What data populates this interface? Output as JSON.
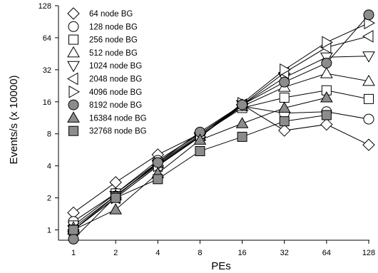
{
  "chart_data": {
    "type": "line",
    "xlabel": "PEs",
    "ylabel": "Events/s (x 10000)",
    "x": [
      1,
      2,
      4,
      8,
      16,
      32,
      64,
      128
    ],
    "x_tick_labels": [
      "1",
      "2",
      "4",
      "8",
      "16",
      "32",
      "64",
      "128"
    ],
    "y_ticks": [
      1,
      2,
      4,
      8,
      16,
      32,
      64,
      128
    ],
    "y_tick_labels": [
      "1",
      "2",
      "4",
      "8",
      "16",
      "32",
      "64",
      "128"
    ],
    "x_scale": "log2",
    "y_scale": "log2",
    "xlim": [
      1,
      128
    ],
    "ylim": [
      0.8,
      128
    ],
    "grid": false,
    "legend_position": "top-left",
    "series": [
      {
        "name": "64 node BG",
        "marker": "diamond",
        "fill": "none",
        "values": [
          1.45,
          2.8,
          5.1,
          8.0,
          15.0,
          8.6,
          9.8,
          6.3
        ]
      },
      {
        "name": "128 node BG",
        "marker": "circle",
        "fill": "none",
        "values": [
          1.2,
          2.2,
          4.5,
          8.0,
          14.5,
          12.5,
          12.9,
          11.0
        ]
      },
      {
        "name": "256 node BG",
        "marker": "square",
        "fill": "none",
        "values": [
          1.1,
          2.2,
          4.3,
          7.8,
          14.0,
          17.5,
          20.5,
          17.0
        ]
      },
      {
        "name": "512 node BG",
        "marker": "triangle-up",
        "fill": "none",
        "values": [
          1.05,
          2.1,
          4.2,
          7.6,
          14.5,
          22.0,
          29.5,
          25.0
        ]
      },
      {
        "name": "1024 node BG",
        "marker": "triangle-down",
        "fill": "none",
        "values": [
          1.0,
          2.1,
          4.1,
          7.5,
          15.0,
          27.0,
          42.0,
          43.0
        ]
      },
      {
        "name": "2048 node BG",
        "marker": "triangle-left",
        "fill": "none",
        "values": [
          1.0,
          2.0,
          4.0,
          7.5,
          15.0,
          30.0,
          52.0,
          66.0
        ]
      },
      {
        "name": "4096 node BG",
        "marker": "triangle-right",
        "fill": "none",
        "values": [
          1.0,
          2.0,
          4.0,
          7.5,
          15.5,
          32.0,
          58.0,
          88.0
        ]
      },
      {
        "name": "8192 node BG",
        "marker": "circle",
        "fill": "gray",
        "values": [
          0.82,
          2.05,
          4.3,
          8.3,
          15.0,
          24.5,
          37.0,
          105.0
        ]
      },
      {
        "name": "16384 node BG",
        "marker": "triangle-up",
        "fill": "gray",
        "values": [
          1.0,
          1.55,
          3.4,
          7.0,
          10.0,
          14.0,
          17.5,
          null
        ]
      },
      {
        "name": "32768 node BG",
        "marker": "square",
        "fill": "gray",
        "values": [
          1.0,
          2.0,
          3.0,
          5.5,
          7.5,
          10.5,
          12.0,
          null
        ]
      }
    ]
  },
  "colors": {
    "marker_gray": "#8c8c8c",
    "stroke": "#000000"
  }
}
